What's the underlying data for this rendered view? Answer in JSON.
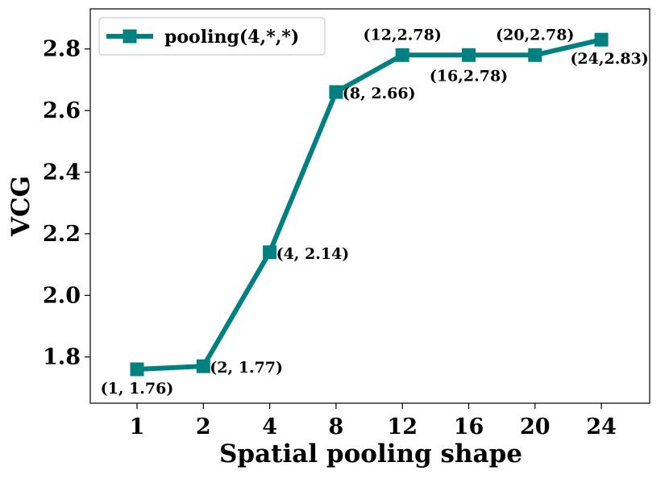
{
  "chart_data": {
    "type": "line",
    "title": "",
    "xlabel": "Spatial pooling shape",
    "ylabel": "VCG",
    "categories": [
      "1",
      "2",
      "4",
      "8",
      "12",
      "16",
      "20",
      "24"
    ],
    "series": [
      {
        "name": "pooling(4,*,*)",
        "color": "#008080",
        "marker": "square",
        "values": [
          1.76,
          1.77,
          2.14,
          2.66,
          2.78,
          2.78,
          2.78,
          2.83
        ]
      }
    ],
    "ylim": [
      1.65,
      2.93
    ],
    "yticks": [
      1.8,
      2.0,
      2.2,
      2.4,
      2.6,
      2.8
    ],
    "ytick_labels": [
      "1.8",
      "2.0",
      "2.2",
      "2.4",
      "2.6",
      "2.8"
    ],
    "annotations": [
      "(1,  1.76)",
      "(2,  1.77)",
      "(4,  2.14)",
      "(8,  2.66)",
      "(12,2.78)",
      "(16,2.78)",
      "(20,2.78)",
      "(24,2.83)"
    ],
    "legend_placement": "top-left",
    "grid": false
  }
}
